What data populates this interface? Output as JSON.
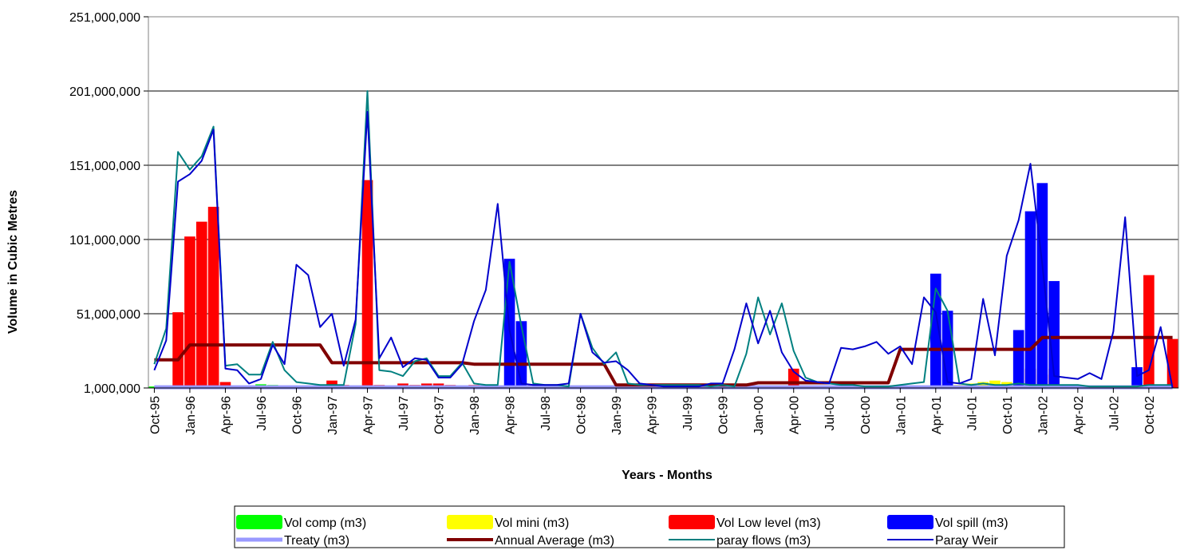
{
  "chart_data": {
    "type": "bar+line",
    "title": "",
    "xlabel": "Years - Months",
    "ylabel": "Volume in Cubic Metres",
    "ylim": [
      1000000,
      251000000
    ],
    "yticks": [
      1000000,
      51000000,
      101000000,
      151000000,
      201000000,
      251000000
    ],
    "ytick_labels": [
      "1,000,000",
      "51,000,000",
      "101,000,000",
      "151,000,000",
      "201,000,000",
      "251,000,000"
    ],
    "grid": "horizontal",
    "legend_position": "bottom",
    "x": [
      "Oct-95",
      "Nov-95",
      "Dec-95",
      "Jan-96",
      "Feb-96",
      "Mar-96",
      "Apr-96",
      "May-96",
      "Jun-96",
      "Jul-96",
      "Aug-96",
      "Sep-96",
      "Oct-96",
      "Nov-96",
      "Dec-96",
      "Jan-97",
      "Feb-97",
      "Mar-97",
      "Apr-97",
      "May-97",
      "Jun-97",
      "Jul-97",
      "Aug-97",
      "Sep-97",
      "Oct-97",
      "Nov-97",
      "Dec-97",
      "Jan-98",
      "Feb-98",
      "Mar-98",
      "Apr-98",
      "May-98",
      "Jun-98",
      "Jul-98",
      "Aug-98",
      "Sep-98",
      "Oct-98",
      "Nov-98",
      "Dec-98",
      "Jan-99",
      "Feb-99",
      "Mar-99",
      "Apr-99",
      "May-99",
      "Jun-99",
      "Jul-99",
      "Aug-99",
      "Sep-99",
      "Oct-99",
      "Nov-99",
      "Dec-99",
      "Jan-00",
      "Feb-00",
      "Mar-00",
      "Apr-00",
      "May-00",
      "Jun-00",
      "Jul-00",
      "Aug-00",
      "Sep-00",
      "Oct-00",
      "Nov-00",
      "Dec-00",
      "Jan-01",
      "Feb-01",
      "Mar-01",
      "Apr-01",
      "May-01",
      "Jun-01",
      "Jul-01",
      "Aug-01",
      "Sep-01",
      "Oct-01",
      "Nov-01",
      "Dec-01",
      "Jan-02",
      "Feb-02",
      "Mar-02",
      "Apr-02",
      "May-02",
      "Jun-02",
      "Jul-02",
      "Aug-02",
      "Sep-02",
      "Oct-02",
      "Nov-02",
      "Dec-02"
    ],
    "xtick_labels": [
      "Oct-95",
      "Jan-96",
      "Apr-96",
      "Jul-96",
      "Oct-96",
      "Jan-97",
      "Apr-97",
      "Jul-97",
      "Oct-97",
      "Jan-98",
      "Apr-98",
      "Jul-98",
      "Oct-98",
      "Jan-99",
      "Apr-99",
      "Jul-99",
      "Oct-99",
      "Jan-00",
      "Apr-00",
      "Jul-00",
      "Oct-00",
      "Jan-01",
      "Apr-01",
      "Jul-01",
      "Oct-01",
      "Jan-02",
      "Apr-02",
      "Jul-02",
      "Oct-02"
    ],
    "series": [
      {
        "name": "Vol comp (m3)",
        "kind": "bar",
        "color": "#00ff00",
        "values": [
          2000000,
          2000000,
          2000000,
          2000000,
          2000000,
          2000000,
          2000000,
          2000000,
          2000000,
          3500000,
          3000000,
          2000000,
          2000000,
          2000000,
          2000000,
          2000000,
          2000000,
          2000000,
          2000000,
          2000000,
          2000000,
          2000000,
          2000000,
          2000000,
          2000000,
          2000000,
          2000000,
          2000000,
          2000000,
          2000000,
          2000000,
          2000000,
          2000000,
          2000000,
          2000000,
          2000000,
          2000000,
          2000000,
          2000000,
          2000000,
          2000000,
          2000000,
          2000000,
          2000000,
          2000000,
          2000000,
          2000000,
          2000000,
          2000000,
          2000000,
          2000000,
          2000000,
          2000000,
          2000000,
          2000000,
          2000000,
          2000000,
          2000000,
          2000000,
          2000000,
          2000000,
          2000000,
          2000000,
          2000000,
          2000000,
          2000000,
          2000000,
          2000000,
          2000000,
          2000000,
          2000000,
          2000000,
          2000000,
          2000000,
          2000000,
          2000000,
          2000000,
          2000000,
          2000000,
          2000000,
          2000000,
          2000000,
          2000000,
          2000000,
          2000000,
          2000000,
          2000000
        ]
      },
      {
        "name": "Vol mini (m3)",
        "kind": "bar",
        "color": "#ffff00",
        "values": [
          0,
          0,
          0,
          0,
          0,
          0,
          0,
          0,
          0,
          0,
          0,
          0,
          0,
          0,
          0,
          0,
          0,
          0,
          0,
          0,
          0,
          0,
          0,
          0,
          0,
          0,
          0,
          0,
          0,
          0,
          0,
          0,
          0,
          0,
          0,
          0,
          0,
          0,
          0,
          0,
          0,
          0,
          0,
          0,
          0,
          0,
          0,
          0,
          0,
          0,
          0,
          0,
          0,
          0,
          0,
          0,
          0,
          0,
          0,
          0,
          0,
          0,
          0,
          0,
          0,
          0,
          0,
          0,
          3000000,
          4000000,
          5000000,
          6000000,
          5000000,
          0,
          0,
          0,
          0,
          0,
          0,
          0,
          0,
          0,
          0,
          0,
          0,
          0,
          0
        ]
      },
      {
        "name": "Vol Low level (m3)",
        "kind": "bar",
        "color": "#ff0000",
        "values": [
          0,
          0,
          52000000,
          103000000,
          113000000,
          123000000,
          5000000,
          0,
          0,
          0,
          0,
          0,
          2000000,
          0,
          0,
          6000000,
          3000000,
          0,
          141000000,
          3000000,
          0,
          4000000,
          3000000,
          4000000,
          4000000,
          3000000,
          0,
          3000000,
          0,
          0,
          0,
          0,
          3000000,
          0,
          0,
          0,
          2000000,
          0,
          0,
          0,
          0,
          2000000,
          0,
          0,
          0,
          0,
          0,
          0,
          0,
          0,
          0,
          0,
          0,
          0,
          14000000,
          0,
          0,
          0,
          0,
          0,
          0,
          0,
          0,
          0,
          0,
          0,
          0,
          0,
          0,
          0,
          0,
          0,
          0,
          0,
          14000000,
          10000000,
          14000000,
          0,
          0,
          0,
          0,
          0,
          0,
          0,
          77000000,
          0,
          34000000
        ]
      },
      {
        "name": "Vol spill (m3)",
        "kind": "bar",
        "color": "#0000ff",
        "values": [
          0,
          0,
          0,
          0,
          0,
          0,
          0,
          0,
          0,
          0,
          0,
          0,
          0,
          0,
          0,
          0,
          0,
          0,
          0,
          0,
          0,
          0,
          0,
          0,
          0,
          0,
          0,
          0,
          0,
          0,
          88000000,
          46000000,
          0,
          0,
          0,
          0,
          0,
          0,
          0,
          0,
          0,
          0,
          0,
          0,
          0,
          0,
          0,
          0,
          0,
          0,
          0,
          0,
          0,
          0,
          0,
          0,
          0,
          0,
          0,
          0,
          0,
          0,
          0,
          0,
          0,
          0,
          78000000,
          53000000,
          0,
          0,
          0,
          0,
          0,
          40000000,
          120000000,
          139000000,
          73000000,
          0,
          0,
          0,
          0,
          0,
          0,
          15000000,
          0,
          0,
          0
        ]
      },
      {
        "name": "Treaty (m3)",
        "kind": "line",
        "color": "#9999ff",
        "width": 5,
        "values": [
          1500000,
          1500000,
          1500000,
          1500000,
          1500000,
          1500000,
          1500000,
          1500000,
          1500000,
          1500000,
          1500000,
          1500000,
          1500000,
          1500000,
          1500000,
          1500000,
          1500000,
          1500000,
          1500000,
          1500000,
          1500000,
          1500000,
          1500000,
          1500000,
          1500000,
          1500000,
          1500000,
          1500000,
          1500000,
          1500000,
          1500000,
          1500000,
          1500000,
          1500000,
          1500000,
          1500000,
          1500000,
          1500000,
          1500000,
          1500000,
          1500000,
          1500000,
          1500000,
          1500000,
          1500000,
          1500000,
          1500000,
          1500000,
          1500000,
          1500000,
          1500000,
          1500000,
          1500000,
          1500000,
          1500000,
          1500000,
          1500000,
          1500000,
          1500000,
          1500000,
          1500000,
          1500000,
          1500000,
          1500000,
          1500000,
          1500000,
          1500000,
          1500000,
          1500000,
          1500000,
          1500000,
          1500000,
          1500000,
          1500000,
          1500000,
          1500000,
          1500000,
          1500000,
          1500000,
          1500000,
          1500000,
          1500000,
          1500000,
          1500000,
          1500000,
          1500000,
          1500000
        ]
      },
      {
        "name": "Annual Average (m3)",
        "kind": "line",
        "color": "#800000",
        "width": 4,
        "values": [
          20000000,
          20000000,
          20000000,
          30000000,
          30000000,
          30000000,
          30000000,
          30000000,
          30000000,
          30000000,
          30000000,
          30000000,
          30000000,
          30000000,
          30000000,
          18000000,
          18000000,
          18000000,
          18000000,
          18000000,
          18000000,
          18000000,
          18000000,
          18000000,
          18000000,
          18000000,
          18000000,
          17000000,
          17000000,
          17000000,
          17000000,
          17000000,
          17000000,
          17000000,
          17000000,
          17000000,
          17000000,
          17000000,
          17000000,
          3000000,
          3000000,
          3000000,
          3000000,
          3000000,
          3000000,
          3000000,
          3000000,
          3000000,
          3000000,
          3000000,
          3000000,
          4500000,
          4500000,
          4500000,
          4500000,
          4500000,
          4500000,
          4500000,
          4500000,
          4500000,
          4500000,
          4500000,
          4500000,
          27000000,
          27000000,
          27000000,
          27000000,
          27000000,
          27000000,
          27000000,
          27000000,
          27000000,
          27000000,
          27000000,
          27000000,
          35000000,
          35000000,
          35000000,
          35000000,
          35000000,
          35000000,
          35000000,
          35000000,
          35000000,
          35000000,
          35000000,
          35000000
        ]
      },
      {
        "name": "paray flows (m3)",
        "kind": "line",
        "color": "#008080",
        "width": 2,
        "values": [
          17000000,
          41000000,
          160000000,
          148000000,
          157000000,
          177000000,
          16000000,
          17000000,
          10000000,
          10000000,
          32000000,
          13000000,
          5000000,
          4000000,
          3000000,
          3000000,
          3000000,
          44000000,
          201000000,
          13000000,
          12000000,
          9000000,
          19000000,
          21000000,
          9000000,
          9000000,
          18000000,
          4000000,
          3000000,
          3000000,
          86000000,
          43000000,
          4000000,
          3000000,
          3000000,
          2000000,
          51000000,
          28000000,
          17000000,
          25000000,
          4000000,
          3000000,
          3000000,
          3000000,
          3000000,
          3000000,
          3000000,
          2000000,
          3000000,
          2000000,
          24000000,
          62000000,
          37000000,
          58000000,
          26000000,
          8000000,
          5000000,
          4000000,
          3000000,
          3000000,
          2000000,
          2000000,
          2000000,
          3000000,
          4000000,
          5000000,
          68000000,
          53000000,
          4000000,
          3000000,
          4000000,
          3000000,
          3000000,
          4000000,
          3000000,
          3000000,
          3000000,
          3000000,
          3000000,
          2000000,
          2000000,
          2000000,
          2000000,
          2000000,
          3000000,
          3000000,
          3000000
        ]
      },
      {
        "name": "Paray Weir",
        "kind": "line",
        "color": "#0000cc",
        "width": 2,
        "values": [
          13000000,
          33000000,
          140000000,
          145000000,
          154000000,
          175000000,
          14000000,
          13000000,
          4000000,
          7000000,
          30000000,
          17000000,
          84000000,
          77000000,
          42000000,
          51000000,
          16000000,
          47000000,
          187000000,
          21000000,
          35000000,
          15000000,
          21000000,
          20000000,
          8000000,
          8000000,
          17000000,
          46000000,
          67000000,
          125000000,
          40000000,
          4000000,
          3000000,
          3000000,
          3000000,
          4000000,
          51000000,
          25000000,
          18000000,
          19000000,
          13000000,
          4000000,
          3000000,
          2000000,
          2000000,
          2000000,
          2000000,
          4000000,
          4000000,
          27000000,
          58000000,
          31000000,
          53000000,
          25000000,
          12000000,
          6000000,
          5000000,
          4000000,
          28000000,
          27000000,
          29000000,
          32000000,
          24000000,
          29000000,
          17000000,
          62000000,
          52000000,
          5000000,
          4000000,
          7000000,
          61000000,
          23000000,
          90000000,
          114000000,
          152000000,
          84000000,
          9000000,
          8000000,
          7000000,
          11000000,
          7000000,
          39000000,
          116000000,
          9000000,
          13000000,
          42000000,
          0
        ]
      }
    ]
  }
}
